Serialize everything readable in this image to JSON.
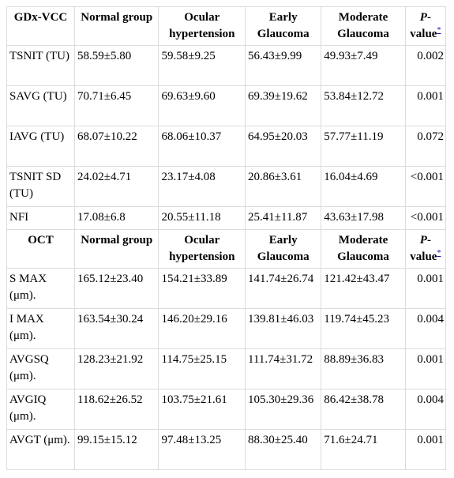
{
  "sections": [
    {
      "header": {
        "label": "GDx-VCC",
        "cols": [
          "Normal group",
          "Ocular hypertension",
          "Early Glaucoma",
          "Moderate Glaucoma"
        ],
        "p_prefix": "P",
        "p_suffix": "-value",
        "p_note": "*"
      },
      "rows": [
        {
          "label": "TSNIT (TU)",
          "values": [
            "58.59±5.80",
            "59.58±9.25",
            "56.43±9.99",
            "49.93±7.49"
          ],
          "p": "0.002"
        },
        {
          "label": "SAVG (TU)",
          "values": [
            "70.71±6.45",
            "69.63±9.60",
            "69.39±19.62",
            "53.84±12.72"
          ],
          "p": "0.001"
        },
        {
          "label": "IAVG (TU)",
          "values": [
            "68.07±10.22",
            "68.06±10.37",
            "64.95±20.03",
            "57.77±11.19"
          ],
          "p": "0.072"
        },
        {
          "label": "TSNIT SD (TU)",
          "values": [
            "24.02±4.71",
            "23.17±4.08",
            "20.86±3.61",
            "16.04±4.69"
          ],
          "p": "<0.001"
        },
        {
          "label": "NFI",
          "values": [
            "17.08±6.8",
            "20.55±11.18",
            "25.41±11.87",
            "43.63±17.98"
          ],
          "p": "<0.001"
        }
      ]
    },
    {
      "header": {
        "label": "OCT",
        "cols": [
          "Normal group",
          "Ocular hypertension",
          "Early Glaucoma",
          "Moderate Glaucoma"
        ],
        "p_prefix": "P",
        "p_suffix": "-value",
        "p_note": "*"
      },
      "rows": [
        {
          "label": "S MAX (μm).",
          "values": [
            "165.12±23.40",
            "154.21±33.89",
            "141.74±26.74",
            "121.42±43.47"
          ],
          "p": "0.001"
        },
        {
          "label": "I MAX (μm).",
          "values": [
            "163.54±30.24",
            "146.20±29.16",
            "139.81±46.03",
            "119.74±45.23"
          ],
          "p": "0.004"
        },
        {
          "label": "AVGSQ (μm).",
          "values": [
            "128.23±21.92",
            "114.75±25.15",
            "111.74±31.72",
            "88.89±36.83"
          ],
          "p": "0.001"
        },
        {
          "label": "AVGIQ (μm).",
          "values": [
            "118.62±26.52",
            "103.75±21.61",
            "105.30±29.36",
            "86.42±38.78"
          ],
          "p": "0.004"
        },
        {
          "label": "AVGT (μm).",
          "values": [
            "99.15±15.12",
            "97.48±13.25",
            "88.30±25.40",
            "71.6±24.71"
          ],
          "p": "0.001"
        }
      ]
    }
  ]
}
